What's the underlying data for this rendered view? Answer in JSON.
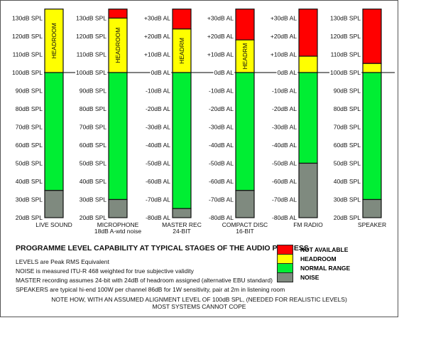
{
  "chart_data": {
    "type": "stacked-bar",
    "title": "PROGRAMME LEVEL CAPABILITY AT TYPICAL STAGES OF THE AUDIO PROCESS",
    "reference_level": "100dB SPL = 0dB AL",
    "colors": {
      "not_available": "#ff0000",
      "headroom": "#ffff00",
      "normal_range": "#00ee33",
      "noise": "#7f8a7f"
    },
    "stages": [
      {
        "label": "LIVE SOUND",
        "sublabel": "",
        "scale": "SPL",
        "ticks": [
          "130dB SPL",
          "120dB SPL",
          "110dB SPL",
          "100dB SPL",
          "90dB SPL",
          "80dB SPL",
          "70dB SPL",
          "60dB SPL",
          "50dB SPL",
          "40dB SPL",
          "30dB SPL",
          "20dB SPL"
        ],
        "headroom_text": "HEADROOM",
        "segments": {
          "not_available": [
            135,
            135
          ],
          "headroom": [
            100,
            135
          ],
          "normal_range": [
            35,
            100
          ],
          "noise": [
            20,
            35
          ]
        }
      },
      {
        "label": "MICROPHONE",
        "sublabel": "18dB A-wtd noise",
        "scale": "SPL",
        "ticks": [
          "130dB SPL",
          "120dB SPL",
          "110dB SPL",
          "100dB SPL",
          "90dB SPL",
          "80dB SPL",
          "70dB SPL",
          "60dB SPL",
          "50dB SPL",
          "40dB SPL",
          "30dB SPL",
          "20dB SPL"
        ],
        "headroom_text": "HEADROOM",
        "segments": {
          "not_available": [
            130,
            135
          ],
          "headroom": [
            100,
            130
          ],
          "normal_range": [
            30,
            100
          ],
          "noise": [
            20,
            30
          ]
        }
      },
      {
        "label": "MASTER REC",
        "sublabel": "24-BIT",
        "scale": "AL",
        "ticks": [
          "+30dB AL",
          "+20dB AL",
          "+10dB AL",
          "0dB AL",
          "-10dB AL",
          "-20dB AL",
          "-30dB AL",
          "-40dB AL",
          "-50dB AL",
          "-60dB AL",
          "-70dB AL",
          "-80dB AL"
        ],
        "headroom_text": "HEADRM",
        "segments": {
          "not_available": [
            124,
            135
          ],
          "headroom": [
            100,
            124
          ],
          "normal_range": [
            25,
            100
          ],
          "noise": [
            20,
            25
          ]
        }
      },
      {
        "label": "COMPACT DISC",
        "sublabel": "16-BIT",
        "scale": "AL",
        "ticks": [
          "+30dB AL",
          "+20dB AL",
          "+10dB AL",
          "0dB AL",
          "-10dB AL",
          "-20dB AL",
          "-30dB AL",
          "-40dB AL",
          "-50dB AL",
          "-60dB AL",
          "-70dB AL",
          "-80dB AL"
        ],
        "headroom_text": "HEADRM",
        "segments": {
          "not_available": [
            118,
            135
          ],
          "headroom": [
            100,
            118
          ],
          "normal_range": [
            35,
            100
          ],
          "noise": [
            20,
            35
          ]
        }
      },
      {
        "label": "FM RADIO",
        "sublabel": "",
        "scale": "AL",
        "ticks": [
          "+30dB AL",
          "+20dB AL",
          "+10dB AL",
          "0dB AL",
          "-10dB AL",
          "-20dB AL",
          "-30dB AL",
          "-40dB AL",
          "-50dB AL",
          "-60dB AL",
          "-70dB AL",
          "-80dB AL"
        ],
        "headroom_text": "",
        "segments": {
          "not_available": [
            109,
            135
          ],
          "headroom": [
            100,
            109
          ],
          "normal_range": [
            50,
            100
          ],
          "noise": [
            20,
            50
          ]
        }
      },
      {
        "label": "SPEAKER",
        "sublabel": "",
        "scale": "SPL",
        "ticks": [
          "130dB SPL",
          "120dB SPL",
          "110dB SPL",
          "100dB SPL",
          "90dB SPL",
          "80dB SPL",
          "70dB SPL",
          "60dB SPL",
          "50dB SPL",
          "40dB SPL",
          "30dB SPL",
          "20dB SPL"
        ],
        "headroom_text": "",
        "segments": {
          "not_available": [
            105,
            135
          ],
          "headroom": [
            100,
            105
          ],
          "normal_range": [
            30,
            100
          ],
          "noise": [
            20,
            30
          ]
        }
      }
    ]
  },
  "notes": [
    "LEVELS are Peak RMS Equivalent",
    "NOISE is measured ITU-R 468 weighted for true subjective validity",
    "MASTER recording assumes 24-bit with 24dB of headroom assigned  (alternative EBU standard)",
    "SPEAKERS are typical hi-end 100W per channel 86dB for 1W sensitivity, pair at 2m in listening room"
  ],
  "footer": {
    "line1": "NOTE HOW, WITH AN ASSUMED ALIGNMENT LEVEL OF 100dB SPL, (NEEDED FOR REALISTIC LEVELS)",
    "line2": "MOST SYSTEMS CANNOT COPE"
  },
  "legend": [
    {
      "label": "NOT AVAILABLE",
      "color": "#ff0000"
    },
    {
      "label": "HEADROOM",
      "color": "#ffff00"
    },
    {
      "label": "NORMAL RANGE",
      "color": "#00ee33"
    },
    {
      "label": "NOISE",
      "color": "#7f8a7f"
    }
  ]
}
